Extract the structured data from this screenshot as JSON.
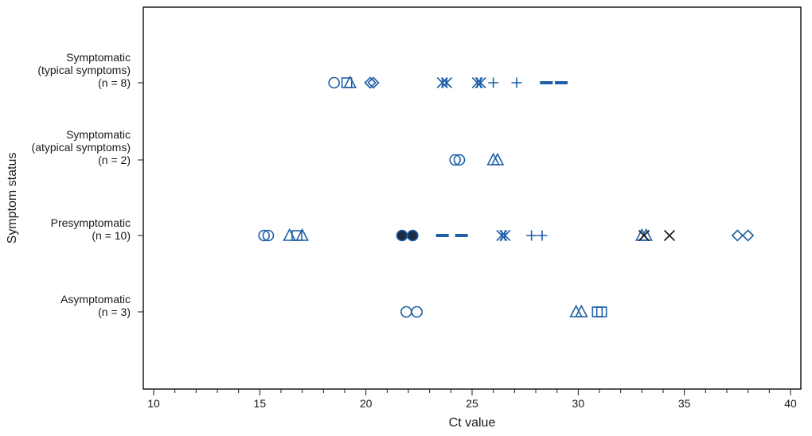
{
  "chart_data": {
    "type": "scatter",
    "xlabel": "Ct value",
    "ylabel": "Symptom status",
    "xlim": [
      9.5,
      40.5
    ],
    "x_ticks": [
      10,
      15,
      20,
      25,
      30,
      35,
      40
    ],
    "categories": [
      {
        "lines": [
          "Symptomatic",
          "(typical symptoms)",
          "(n = 8)"
        ]
      },
      {
        "lines": [
          "Symptomatic",
          "(atypical symptoms)",
          "(n = 2)"
        ]
      },
      {
        "lines": [
          "Presymptomatic",
          "(n = 10)"
        ]
      },
      {
        "lines": [
          "Asymptomatic",
          "(n = 3)"
        ]
      }
    ],
    "colors": {
      "blue": "#1f5fa6",
      "black": "#1a1a1a"
    },
    "points": [
      {
        "cat": 0,
        "x": 18.5,
        "marker": "circle",
        "color": "blue"
      },
      {
        "cat": 0,
        "x": 19.1,
        "marker": "square",
        "color": "blue"
      },
      {
        "cat": 0,
        "x": 19.25,
        "marker": "triangle",
        "color": "blue"
      },
      {
        "cat": 0,
        "x": 20.2,
        "marker": "diamond",
        "color": "blue"
      },
      {
        "cat": 0,
        "x": 20.35,
        "marker": "diamond",
        "color": "blue"
      },
      {
        "cat": 0,
        "x": 23.6,
        "marker": "asterisk",
        "color": "blue"
      },
      {
        "cat": 0,
        "x": 23.8,
        "marker": "asterisk",
        "color": "blue"
      },
      {
        "cat": 0,
        "x": 25.25,
        "marker": "asterisk",
        "color": "blue"
      },
      {
        "cat": 0,
        "x": 25.4,
        "marker": "asterisk",
        "color": "blue"
      },
      {
        "cat": 0,
        "x": 26.0,
        "marker": "plus",
        "color": "blue"
      },
      {
        "cat": 0,
        "x": 27.1,
        "marker": "plus",
        "color": "blue"
      },
      {
        "cat": 0,
        "x": 28.5,
        "marker": "dash",
        "color": "blue"
      },
      {
        "cat": 0,
        "x": 29.2,
        "marker": "dash",
        "color": "blue"
      },
      {
        "cat": 1,
        "x": 24.2,
        "marker": "circle",
        "color": "blue"
      },
      {
        "cat": 1,
        "x": 24.4,
        "marker": "circle",
        "color": "blue"
      },
      {
        "cat": 1,
        "x": 26.0,
        "marker": "triangle",
        "color": "blue"
      },
      {
        "cat": 1,
        "x": 26.2,
        "marker": "triangle",
        "color": "blue"
      },
      {
        "cat": 2,
        "x": 15.2,
        "marker": "circle",
        "color": "blue"
      },
      {
        "cat": 2,
        "x": 15.4,
        "marker": "circle",
        "color": "blue"
      },
      {
        "cat": 2,
        "x": 16.4,
        "marker": "triangle",
        "color": "blue"
      },
      {
        "cat": 2,
        "x": 16.75,
        "marker": "square",
        "color": "blue"
      },
      {
        "cat": 2,
        "x": 17.0,
        "marker": "triangle",
        "color": "blue"
      },
      {
        "cat": 2,
        "x": 21.7,
        "marker": "filled_circle",
        "color": "blue"
      },
      {
        "cat": 2,
        "x": 22.2,
        "marker": "filled_circle",
        "color": "blue"
      },
      {
        "cat": 2,
        "x": 23.6,
        "marker": "dash",
        "color": "blue"
      },
      {
        "cat": 2,
        "x": 24.5,
        "marker": "dash",
        "color": "blue"
      },
      {
        "cat": 2,
        "x": 26.4,
        "marker": "asterisk",
        "color": "blue"
      },
      {
        "cat": 2,
        "x": 26.55,
        "marker": "asterisk",
        "color": "blue"
      },
      {
        "cat": 2,
        "x": 27.8,
        "marker": "plus",
        "color": "blue"
      },
      {
        "cat": 2,
        "x": 28.3,
        "marker": "plus",
        "color": "blue"
      },
      {
        "cat": 2,
        "x": 33.0,
        "marker": "triangle",
        "color": "blue"
      },
      {
        "cat": 2,
        "x": 33.2,
        "marker": "triangle",
        "color": "blue"
      },
      {
        "cat": 2,
        "x": 33.1,
        "marker": "x",
        "color": "black"
      },
      {
        "cat": 2,
        "x": 34.3,
        "marker": "x",
        "color": "black"
      },
      {
        "cat": 2,
        "x": 37.5,
        "marker": "diamond",
        "color": "blue"
      },
      {
        "cat": 2,
        "x": 38.0,
        "marker": "diamond",
        "color": "blue"
      },
      {
        "cat": 3,
        "x": 21.9,
        "marker": "circle",
        "color": "blue"
      },
      {
        "cat": 3,
        "x": 22.4,
        "marker": "circle",
        "color": "blue"
      },
      {
        "cat": 3,
        "x": 29.9,
        "marker": "triangle",
        "color": "blue"
      },
      {
        "cat": 3,
        "x": 30.15,
        "marker": "triangle",
        "color": "blue"
      },
      {
        "cat": 3,
        "x": 30.9,
        "marker": "square",
        "color": "blue"
      },
      {
        "cat": 3,
        "x": 31.1,
        "marker": "square",
        "color": "blue"
      }
    ]
  }
}
